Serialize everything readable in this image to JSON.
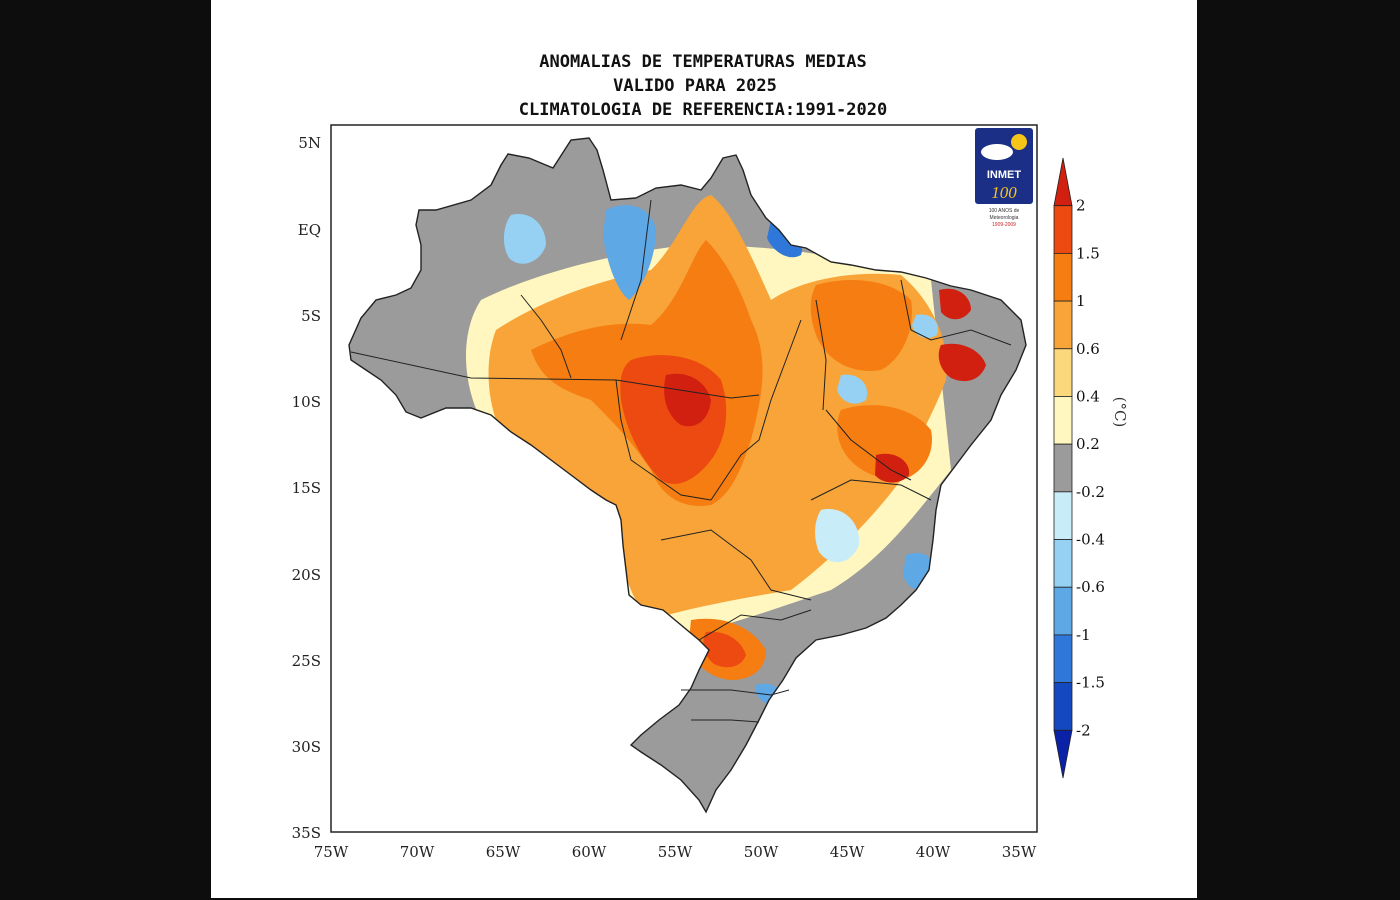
{
  "title_lines": [
    "ANOMALIAS DE TEMPERATURAS MEDIAS",
    "VALIDO PARA 2025",
    "CLIMATOLOGIA DE REFERENCIA:1991-2020"
  ],
  "axes": {
    "lon_ticks": [
      "75W",
      "70W",
      "65W",
      "60W",
      "55W",
      "50W",
      "45W",
      "40W",
      "35W"
    ],
    "lat_ticks": [
      "5N",
      "EQ",
      "5S",
      "10S",
      "15S",
      "20S",
      "25S",
      "30S",
      "35S"
    ]
  },
  "colorbar": {
    "unit": "(°C)",
    "levels": [
      "2",
      "1.5",
      "1",
      "0.6",
      "0.4",
      "0.2",
      "-0.2",
      "-0.4",
      "-0.6",
      "-1",
      "-1.5",
      "-2"
    ],
    "colors": [
      "#d22010",
      "#ec4a10",
      "#f57d12",
      "#f8a438",
      "#fbd87c",
      "#fff7bf",
      "#9b9b9b",
      "#c8ecf8",
      "#96d0f2",
      "#5ea8e6",
      "#2f78da",
      "#1448c0",
      "#0a22a8"
    ]
  },
  "logo": {
    "name": "INMET",
    "number": "100",
    "caption_lines": [
      "100 ANOS de",
      "Meteorologia",
      "1909-2009"
    ]
  }
}
